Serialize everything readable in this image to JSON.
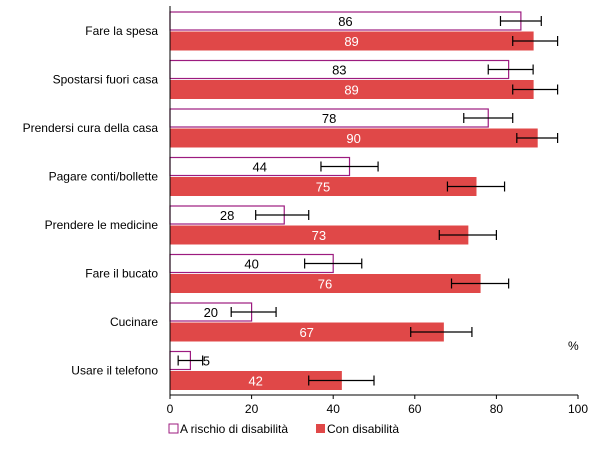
{
  "chart_data": {
    "type": "bar",
    "orientation": "horizontal",
    "categories": [
      "Fare la spesa",
      "Spostarsi fuori casa",
      "Prendersi cura della casa",
      "Pagare conti/bollette",
      "Prendere le medicine",
      "Fare il bucato",
      "Cucinare",
      "Usare il telefono"
    ],
    "series": [
      {
        "name": "A rischio di disabilità",
        "values": [
          86,
          83,
          78,
          44,
          28,
          40,
          20,
          5
        ],
        "labels": [
          "86",
          "83",
          "78",
          "44",
          "28",
          "40",
          "20",
          "5"
        ],
        "error_low": [
          81,
          78,
          72,
          37,
          21,
          33,
          15,
          2
        ],
        "error_high": [
          91,
          89,
          84,
          51,
          34,
          47,
          26,
          8
        ],
        "fill": "#ffffff",
        "stroke": "#9c1b7f"
      },
      {
        "name": "Con disabilità",
        "values": [
          89,
          89,
          90,
          75,
          73,
          76,
          67,
          42
        ],
        "labels": [
          "89",
          "89",
          "90",
          "75",
          "73",
          "76",
          "67",
          "42"
        ],
        "error_low": [
          84,
          84,
          85,
          68,
          66,
          69,
          59,
          34
        ],
        "error_high": [
          95,
          95,
          95,
          82,
          80,
          83,
          74,
          50
        ],
        "fill": "#e04848",
        "stroke": "#e04848"
      }
    ],
    "xlim": [
      0,
      100
    ],
    "xticks": [
      "0",
      "20",
      "40",
      "60",
      "80",
      "100"
    ],
    "unit_label": "%",
    "grid": false,
    "legend_position": "bottom"
  }
}
